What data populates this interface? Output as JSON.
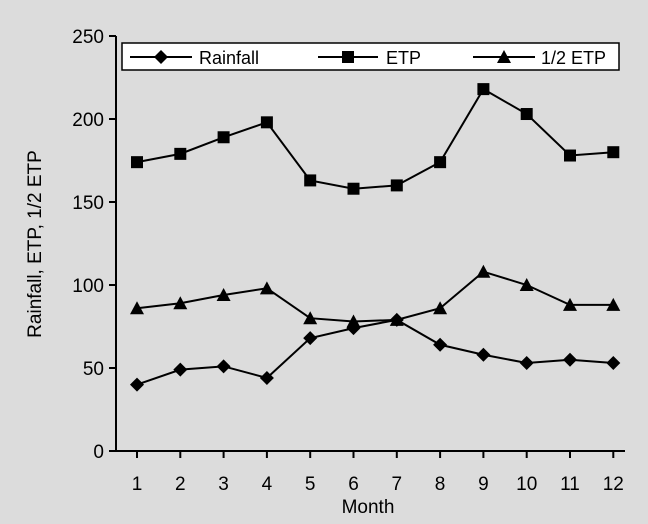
{
  "chart_data": {
    "type": "line",
    "title": "",
    "xlabel": "Month",
    "ylabel": "Rainfall, ETP, 1/2 ETP",
    "x": [
      1,
      2,
      3,
      4,
      5,
      6,
      7,
      8,
      9,
      10,
      11,
      12
    ],
    "xticks": [
      "1",
      "2",
      "3",
      "4",
      "5",
      "6",
      "7",
      "8",
      "9",
      "10",
      "11",
      "12"
    ],
    "ylim": [
      0,
      250
    ],
    "yticks": [
      "0",
      "50",
      "100",
      "150",
      "200",
      "250"
    ],
    "grid": false,
    "legend_position": "top",
    "series": [
      {
        "name": "Rainfall",
        "marker": "diamond",
        "values": [
          40,
          49,
          51,
          44,
          68,
          74,
          79,
          64,
          58,
          53,
          55,
          53
        ]
      },
      {
        "name": "ETP",
        "marker": "square",
        "values": [
          174,
          179,
          189,
          198,
          163,
          158,
          160,
          174,
          218,
          203,
          178,
          180
        ]
      },
      {
        "name": "1/2 ETP",
        "marker": "triangle",
        "values": [
          86,
          89,
          94,
          98,
          80,
          78,
          79,
          86,
          108,
          100,
          88,
          88
        ]
      }
    ],
    "colors": {
      "background": "#dcdcdc",
      "line": "#000000"
    }
  }
}
